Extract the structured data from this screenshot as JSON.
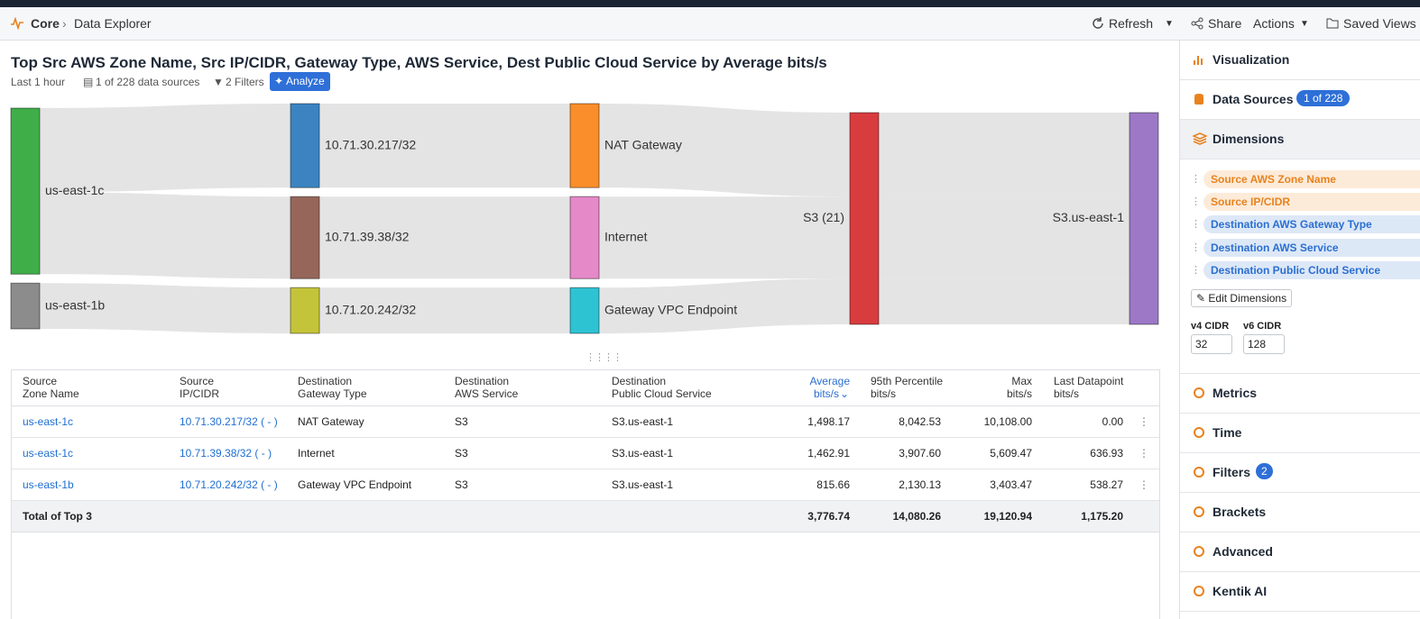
{
  "header": {
    "breadcrumb": [
      "Core",
      "Data Explorer"
    ],
    "actions": [
      "Refresh",
      "Share",
      "Actions",
      "Saved Views"
    ]
  },
  "query": {
    "title": "Top Src AWS Zone Name, Src IP/CIDR, Gateway Type, AWS Service, Dest Public Cloud Service by Average bits/s",
    "time": "Last 1 hour",
    "data_sources": "1 of 228 data sources",
    "filters": "2 Filters",
    "analyze": "Analyze"
  },
  "sankey": {
    "columns": [
      [
        {
          "label": "us-east-1c",
          "color": "#3fae49"
        },
        {
          "label": "us-east-1b",
          "color": "#8c8c8c"
        }
      ],
      [
        {
          "label": "10.71.30.217/32",
          "color": "#3b84c1"
        },
        {
          "label": "10.71.39.38/32",
          "color": "#96665a"
        },
        {
          "label": "10.71.20.242/32",
          "color": "#c4c43a"
        }
      ],
      [
        {
          "label": "NAT Gateway",
          "color": "#f98e2a"
        },
        {
          "label": "Internet",
          "color": "#e589c8"
        },
        {
          "label": "Gateway VPC Endpoint",
          "color": "#2ec3d3"
        }
      ],
      [
        {
          "label": "S3 (21)",
          "color": "#d93c3f"
        }
      ],
      [
        {
          "label": "S3.us-east-1",
          "color": "#9c78c6"
        }
      ]
    ]
  },
  "table": {
    "header": [
      [
        "Source",
        "Zone Name"
      ],
      [
        "Source",
        "IP/CIDR"
      ],
      [
        "Destination",
        "Gateway Type"
      ],
      [
        "Destination",
        "AWS Service"
      ],
      [
        "Destination",
        "Public Cloud Service"
      ],
      [
        "Average",
        "bits/s"
      ],
      [
        "95th Percentile",
        "bits/s"
      ],
      [
        "Max",
        "bits/s"
      ],
      [
        "Last Datapoint",
        "bits/s"
      ]
    ],
    "rows": [
      [
        "us-east-1c",
        "10.71.30.217/32 ( - )",
        "NAT Gateway",
        "S3",
        "S3.us-east-1",
        {
          "value": 1498.17,
          "label": "1,498.17"
        },
        {
          "value": 8042.53,
          "label": "8,042.53"
        },
        {
          "value": 10108.0,
          "label": "10,108.00"
        },
        {
          "value": 0.0,
          "label": "0.00"
        }
      ],
      [
        "us-east-1c",
        "10.71.39.38/32 ( - )",
        "Internet",
        "S3",
        "S3.us-east-1",
        {
          "value": 1462.91,
          "label": "1,462.91"
        },
        {
          "value": 3907.6,
          "label": "3,907.60"
        },
        {
          "value": 5609.47,
          "label": "5,609.47"
        },
        {
          "value": 636.93,
          "label": "636.93"
        }
      ],
      [
        "us-east-1b",
        "10.71.20.242/32 ( - )",
        "Gateway VPC Endpoint",
        "S3",
        "S3.us-east-1",
        {
          "value": 815.66,
          "label": "815.66"
        },
        {
          "value": 2130.13,
          "label": "2,130.13"
        },
        {
          "value": 3403.47,
          "label": "3,403.47"
        },
        {
          "value": 538.27,
          "label": "538.27"
        }
      ]
    ],
    "total": [
      "Total of Top 3",
      "3,776.74",
      "14,080.26",
      "19,120.94",
      "1,175.20"
    ]
  },
  "sidebar": {
    "visualization": "Visualization",
    "data_sources": {
      "label": "Data Sources",
      "badge": "1 of 228"
    },
    "dimensions": {
      "label": "Dimensions",
      "items": [
        "Source AWS Zone Name",
        "Source IP/CIDR",
        "Destination AWS Gateway Type",
        "Destination AWS Service",
        "Destination Public Cloud Service"
      ],
      "edit": "Edit Dimensions",
      "v4_label": "v4 CIDR",
      "v4_value": "32",
      "v6_label": "v6 CIDR",
      "v6_value": "128"
    },
    "sections": [
      {
        "label": "Metrics"
      },
      {
        "label": "Time"
      },
      {
        "label": "Filters",
        "badge": "2"
      },
      {
        "label": "Brackets"
      },
      {
        "label": "Advanced"
      },
      {
        "label": "Kentik AI"
      }
    ]
  }
}
